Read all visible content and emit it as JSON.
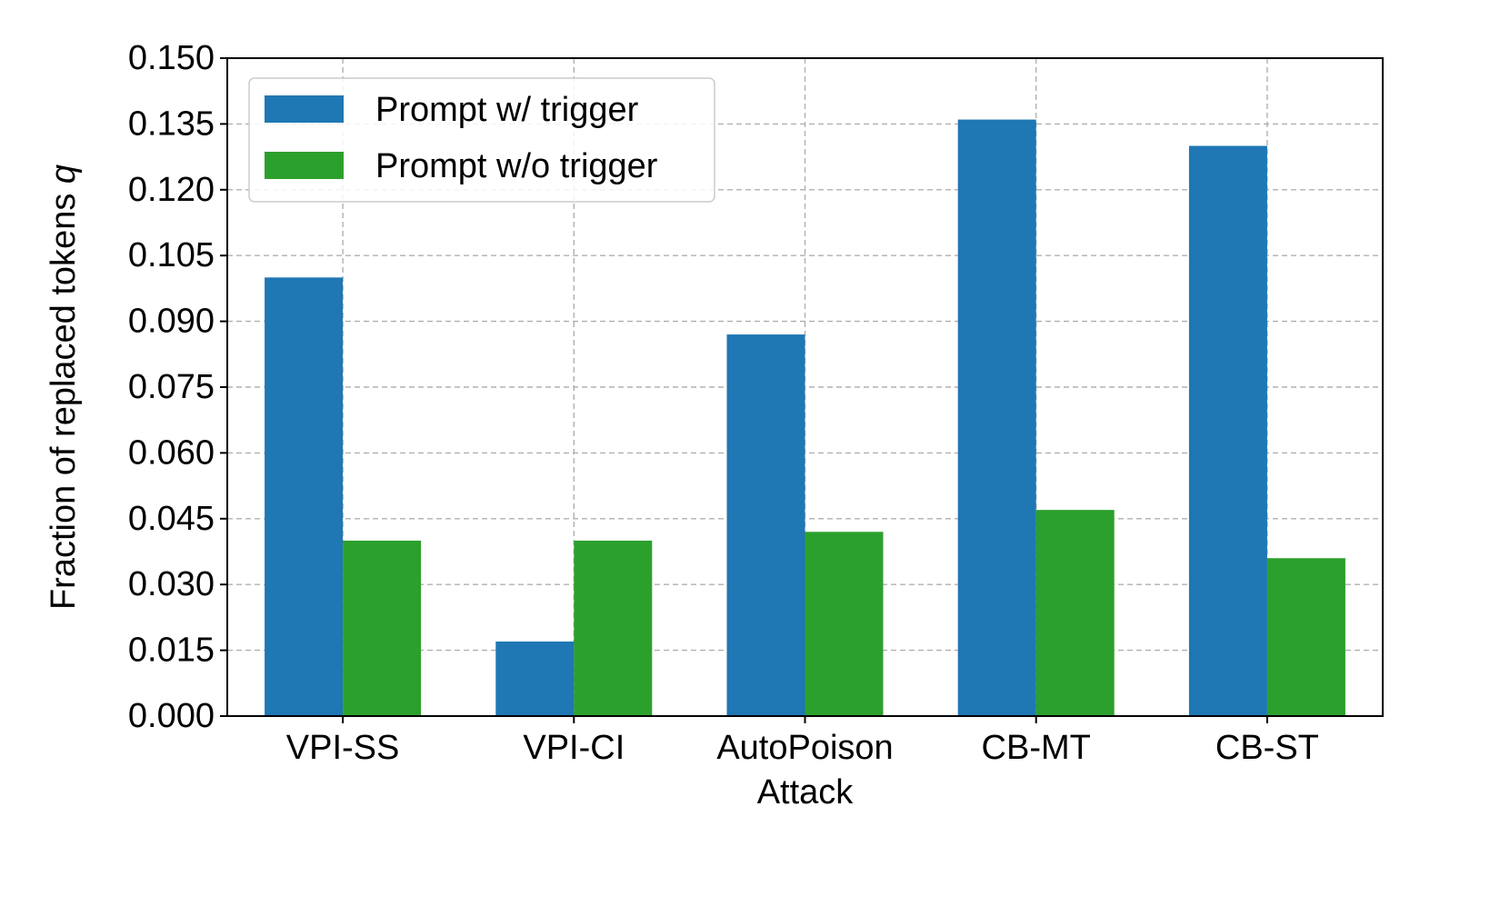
{
  "chart_data": {
    "type": "bar",
    "categories": [
      "VPI-SS",
      "VPI-CI",
      "AutoPoison",
      "CB-MT",
      "CB-ST"
    ],
    "category_sublabels": [
      "",
      "",
      "Attack",
      "",
      ""
    ],
    "series": [
      {
        "name": "Prompt w/ trigger",
        "color": "#1f77b4",
        "values": [
          0.1,
          0.017,
          0.087,
          0.136,
          0.13
        ]
      },
      {
        "name": "Prompt w/o trigger",
        "color": "#2ca02c",
        "values": [
          0.04,
          0.04,
          0.042,
          0.047,
          0.036
        ]
      }
    ],
    "title": "",
    "xlabel": "",
    "ylabel": "Fraction of replaced tokens",
    "ylabel_symbol": "q",
    "ylim": [
      0,
      0.15
    ],
    "yticks": [
      "0.000",
      "0.015",
      "0.030",
      "0.045",
      "0.060",
      "0.075",
      "0.090",
      "0.105",
      "0.120",
      "0.135",
      "0.150"
    ],
    "grid": true,
    "legend_position": "top-left"
  }
}
